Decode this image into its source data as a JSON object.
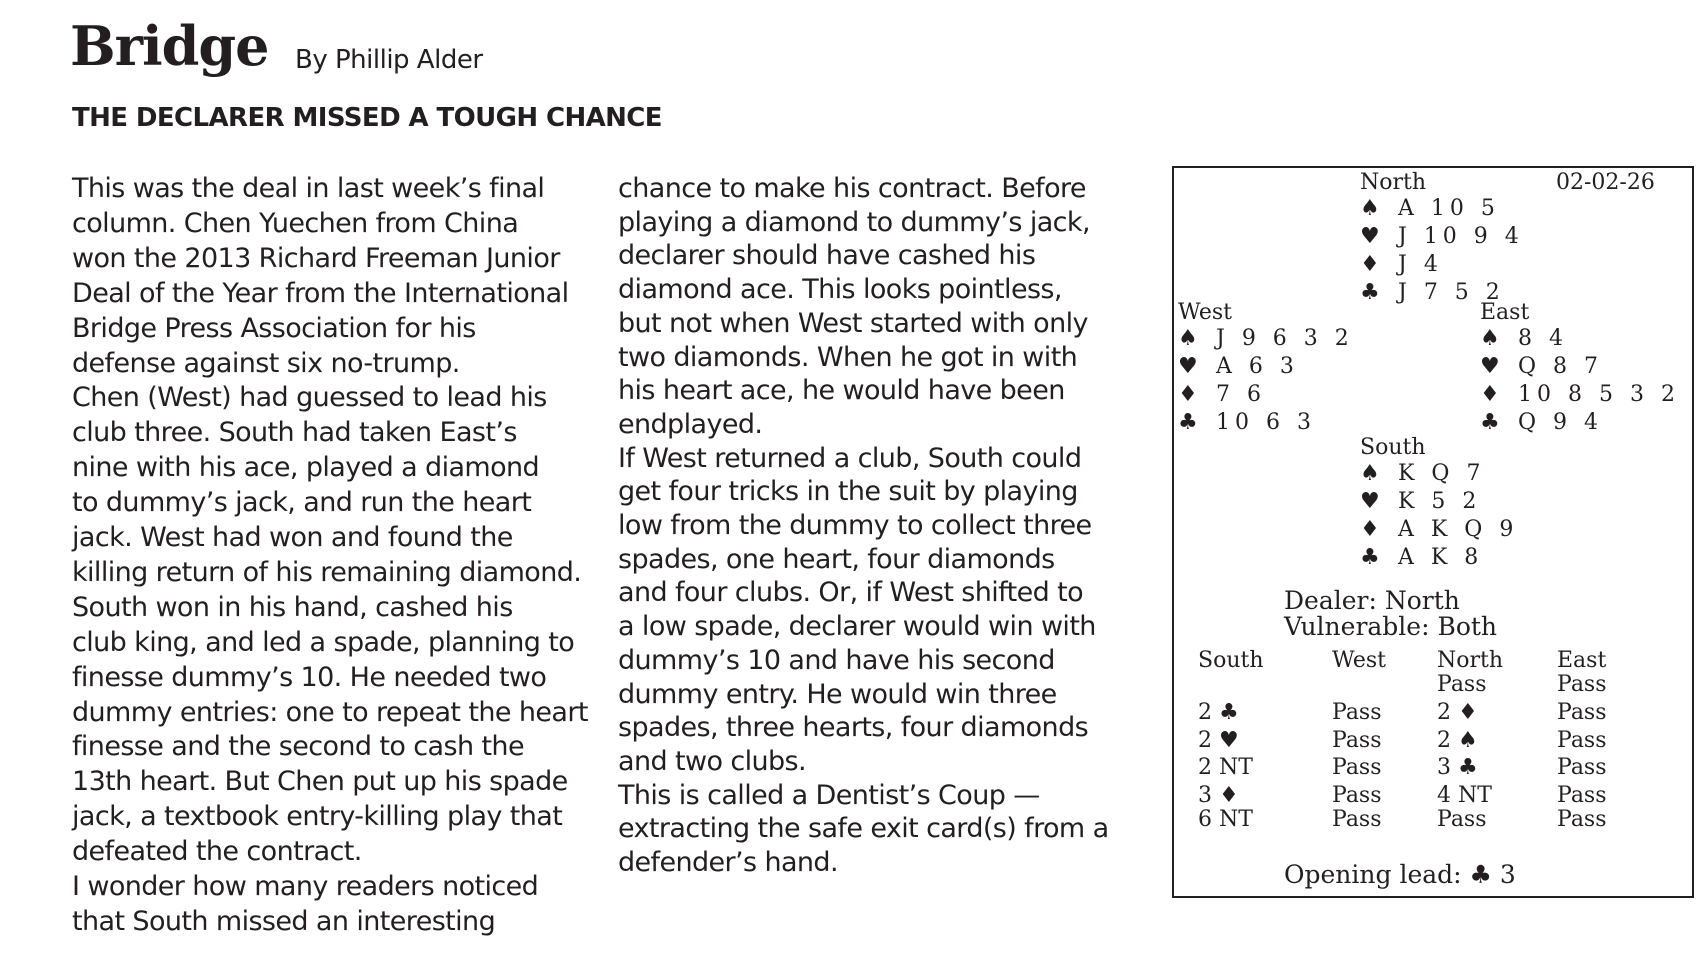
{
  "header": {
    "title": "Bridge",
    "byline": "By Phillip Alder",
    "headline": "THE DECLARER MISSED A TOUGH CHANCE"
  },
  "columns": [
    [
      "This was the deal in last week’s final",
      "column. Chen Yuechen from China",
      "won the 2013 Richard Freeman Junior",
      "Deal of the Year from the International",
      "Bridge Press Association for his",
      "defense against six no-trump.",
      "Chen (West) had guessed to lead his",
      "club three. South had taken East’s",
      "nine with his ace, played a diamond",
      "to dummy’s jack, and run the heart",
      "jack. West had won and found the",
      "killing return of his remaining diamond.",
      "South won in his hand, cashed his",
      "club king, and led a spade, planning to",
      "finesse dummy’s 10. He needed two",
      "dummy entries: one to repeat the heart",
      "finesse and the second to cash the",
      "13th heart. But Chen put up his spade",
      "jack, a textbook entry-killing play that",
      "defeated the contract.",
      "I wonder how many readers noticed",
      "that South missed an interesting"
    ],
    [
      "chance to make his contract. Before",
      "playing a diamond to dummy’s jack,",
      "declarer should have cashed his",
      "diamond ace. This looks pointless,",
      "but not when West started with only",
      "two diamonds. When he got in with",
      "his heart ace, he would have been",
      "endplayed.",
      "If West returned a club, South could",
      "get four tricks in the suit by playing",
      "low from the dummy to collect three",
      "spades, one heart, four diamonds",
      "and four clubs. Or, if West shifted to",
      "a low spade, declarer would win with",
      "dummy’s 10 and have his second",
      "dummy entry. He would win three",
      "spades, three hearts, four diamonds",
      "and two clubs.",
      "This is called a Dentist’s Coup —",
      "extracting the safe exit card(s) from a",
      "defender’s hand."
    ]
  ],
  "diagram": {
    "date": "02-02-26",
    "hands": {
      "north": {
        "label": "North",
        "suits": [
          {
            "symbol": "♠",
            "cards": "A 10 5"
          },
          {
            "symbol": "♥",
            "cards": "J 10 9 4"
          },
          {
            "symbol": "♦",
            "cards": "J 4"
          },
          {
            "symbol": "♣",
            "cards": "J 7 5 2"
          }
        ]
      },
      "west": {
        "label": "West",
        "suits": [
          {
            "symbol": "♠",
            "cards": "J 9 6 3 2"
          },
          {
            "symbol": "♥",
            "cards": "A 6 3"
          },
          {
            "symbol": "♦",
            "cards": "7 6"
          },
          {
            "symbol": "♣",
            "cards": "10 6 3"
          }
        ]
      },
      "east": {
        "label": "East",
        "suits": [
          {
            "symbol": "♠",
            "cards": "8 4"
          },
          {
            "symbol": "♥",
            "cards": "Q 8 7"
          },
          {
            "symbol": "♦",
            "cards": "10 8 5 3 2"
          },
          {
            "symbol": "♣",
            "cards": "Q 9 4"
          }
        ]
      },
      "south": {
        "label": "South",
        "suits": [
          {
            "symbol": "♠",
            "cards": "K Q 7"
          },
          {
            "symbol": "♥",
            "cards": "K 5 2"
          },
          {
            "symbol": "♦",
            "cards": "A K Q 9"
          },
          {
            "symbol": "♣",
            "cards": "A K 8"
          }
        ]
      }
    },
    "dealer": "Dealer: North",
    "vulnerable": "Vulnerable: Both",
    "auction": {
      "headers": [
        "South",
        "West",
        "North",
        "East"
      ],
      "calls": [
        [
          "2 ♣",
          "2 ♥",
          "2 NT",
          "3 ♦",
          "6 NT"
        ],
        [
          "Pass",
          "Pass",
          "Pass",
          "Pass",
          "Pass"
        ],
        [
          "Pass",
          "2 ♦",
          "2 ♠",
          "3 ♣",
          "4 NT",
          "Pass"
        ],
        [
          "Pass",
          "Pass",
          "Pass",
          "Pass",
          "Pass",
          "Pass"
        ]
      ]
    },
    "opening_lead": "Opening lead: ♣ 3"
  }
}
